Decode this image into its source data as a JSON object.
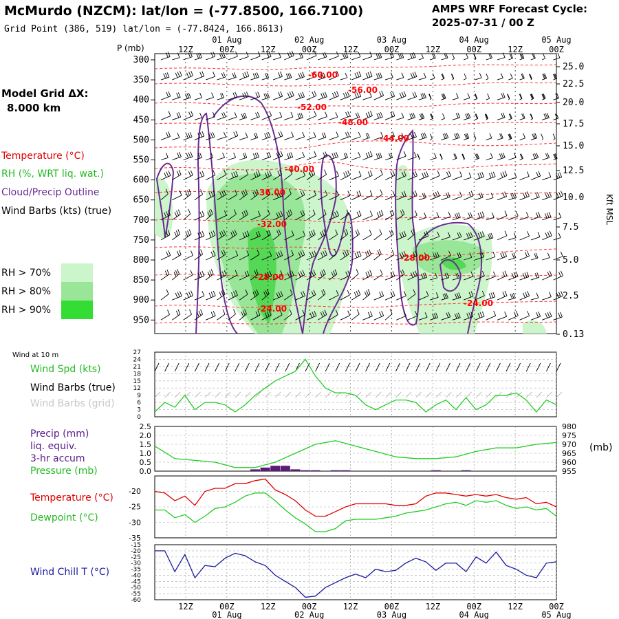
{
  "header": {
    "title": "McMurdo (NZCM):  lat/lon = (-77.8500, 166.7100)",
    "subtitle": "Grid Point (386, 519) lat/lon = (-77.8424, 166.8613)",
    "cycle_label": "AMPS WRF Forecast Cycle:",
    "cycle_value": "2025-07-31 / 00  Z"
  },
  "left_legend": {
    "grid_label": "Model Grid ΔX:",
    "grid_value": "8.000 km",
    "temperature": "Temperature (°C)",
    "rh": "RH (%, WRT liq. wat.)",
    "cloud": "Cloud/Precip Outline",
    "wind": "Wind Barbs (kts) (true)",
    "rh70": "RH > 70%",
    "rh80": "RH > 80%",
    "rh90": "RH > 90%"
  },
  "colors": {
    "temperature": "#ff0000",
    "dewpoint": "#22cc22",
    "cloud_outline": "#6a2c91",
    "rh70": "#ccf5cc",
    "rh80": "#99e699",
    "rh90": "#33dd33",
    "windchill": "#1a1aa0",
    "precip": "#5a1a7a"
  },
  "time_axis": {
    "top_days": [
      "01 Aug",
      "02 Aug",
      "03 Aug",
      "04 Aug",
      "05 Aug"
    ],
    "hour_labels": [
      "12Z",
      "00Z",
      "12Z",
      "00Z",
      "12Z",
      "00Z",
      "12Z",
      "00Z",
      "12Z",
      "00Z"
    ]
  },
  "sounding": {
    "pressure_unit": "P (mb)",
    "pressure_levels": [
      "300",
      "350",
      "400",
      "450",
      "500",
      "550",
      "600",
      "650",
      "700",
      "750",
      "800",
      "850",
      "900",
      "950"
    ],
    "height_unit": "Kft MSL",
    "height_labels": [
      "25.0",
      "22.5",
      "20.0",
      "17.5",
      "15.0",
      "12.5",
      "10.0",
      "7.5",
      "5.0",
      "2.5",
      "0.13"
    ],
    "isotherm_labels": [
      "-60.00",
      "-56.00",
      "-52.00",
      "-48.00",
      "-44.00",
      "-40.00",
      "-36.00",
      "-32.00",
      "-28.00",
      "-28.00",
      "-24.00",
      "-24.00"
    ]
  },
  "panels": {
    "wind10m_title": "Wind at 10 m",
    "wind_spd": "Wind Spd (kts)",
    "wind_barbs_true": "Wind Barbs (true)",
    "wind_barbs_grid": "Wind Barbs (grid)",
    "wind_ticks": [
      "27",
      "24",
      "21",
      "18",
      "15",
      "12",
      "9",
      "6",
      "3",
      "0"
    ],
    "precip": "Precip (mm)",
    "liq": "liq. equiv.",
    "accum": "3-hr accum",
    "pressure": "Pressure (mb)",
    "precip_ticks": [
      "2.5",
      "2.0",
      "1.5",
      "1.0",
      "0.5",
      "0.0"
    ],
    "pressure_ticks": [
      "980",
      "975",
      "970",
      "965",
      "960",
      "955"
    ],
    "pressure_unit": "(mb)",
    "temperature": "Temperature (°C)",
    "dewpoint": "Dewpoint (°C)",
    "temp_ticks": [
      "-20",
      "-25",
      "-30",
      "-35"
    ],
    "windchill": "Wind Chill T (°C)",
    "windchill_ticks": [
      "-15",
      "-20",
      "-25",
      "-30",
      "-35",
      "-40",
      "-45",
      "-50",
      "-55",
      "-60"
    ]
  },
  "chart_data": [
    {
      "type": "line",
      "title": "Wind at 10 m",
      "ylabel": "Wind Spd (kts)",
      "ylim": [
        0,
        27
      ],
      "x": [
        0,
        3,
        6,
        9,
        12,
        15,
        18,
        21,
        24,
        27,
        30,
        33,
        36,
        39,
        42,
        45,
        48,
        51,
        54,
        57,
        60,
        63,
        66,
        69,
        72,
        75,
        78,
        81,
        84,
        87,
        90,
        93,
        96,
        99,
        102,
        105,
        108,
        111,
        114,
        117,
        120
      ],
      "series": [
        {
          "name": "Wind Spd (kts)",
          "values": [
            2,
            6,
            4,
            9,
            3,
            6,
            6,
            5,
            2,
            5,
            9,
            12,
            15,
            17,
            19,
            24,
            17,
            12,
            10,
            10,
            9,
            5,
            3,
            5,
            7,
            7,
            6,
            2,
            5,
            7,
            3,
            8,
            3,
            5,
            9,
            9,
            10,
            7,
            2,
            7,
            5
          ]
        }
      ]
    },
    {
      "type": "line",
      "title": "",
      "ylabel": "Pressure (mb)",
      "ylim": [
        955,
        980
      ],
      "x": [
        0,
        6,
        12,
        18,
        24,
        30,
        36,
        42,
        48,
        54,
        60,
        66,
        72,
        78,
        84,
        90,
        96,
        102,
        108,
        114,
        120
      ],
      "series": [
        {
          "name": "Pressure (mb)",
          "values": [
            969,
            962,
            961,
            960,
            957,
            957,
            960,
            965,
            970,
            972,
            969,
            966,
            963,
            962,
            962,
            963,
            966,
            968,
            968,
            970,
            971
          ]
        }
      ]
    },
    {
      "type": "bar",
      "title": "",
      "ylabel": "Precip (mm)",
      "ylim": [
        0,
        2.5
      ],
      "x": [
        21,
        24,
        27,
        30,
        33,
        36,
        39,
        42,
        45,
        48,
        51,
        54,
        57,
        60,
        63,
        66,
        69,
        72,
        75,
        78,
        81,
        84,
        87,
        90,
        93,
        96
      ],
      "series": [
        {
          "name": "Precip (mm) liq. equiv. 3-hr accum",
          "values": [
            0,
            0,
            0,
            0.1,
            0.2,
            0.3,
            0.3,
            0.1,
            0.05,
            0.05,
            0,
            0.05,
            0.05,
            0,
            0,
            0,
            0,
            0,
            0,
            0,
            0,
            0.05,
            0,
            0,
            0.05,
            0
          ]
        }
      ]
    },
    {
      "type": "line",
      "title": "",
      "ylim": [
        -35,
        -15
      ],
      "x": [
        0,
        3,
        6,
        9,
        12,
        15,
        18,
        21,
        24,
        27,
        30,
        33,
        36,
        39,
        42,
        45,
        48,
        51,
        54,
        57,
        60,
        63,
        66,
        69,
        72,
        75,
        78,
        81,
        84,
        87,
        90,
        93,
        96,
        99,
        102,
        105,
        108,
        111,
        114,
        117,
        120
      ],
      "series": [
        {
          "name": "Temperature (°C)",
          "values": [
            -20,
            -20.5,
            -23,
            -21.5,
            -24.5,
            -20,
            -19,
            -19,
            -17.5,
            -17.5,
            -16.5,
            -16,
            -19.5,
            -21,
            -23,
            -26,
            -28,
            -28,
            -26.5,
            -25,
            -24,
            -24,
            -24,
            -24,
            -24.5,
            -24.5,
            -24,
            -21.5,
            -20.5,
            -20.5,
            -21,
            -21.5,
            -21,
            -21.5,
            -21,
            -22,
            -22.5,
            -22,
            -24,
            -23.5,
            -25
          ]
        },
        {
          "name": "Dewpoint (°C)",
          "values": [
            -26,
            -26,
            -28.5,
            -27.5,
            -30,
            -28,
            -25.5,
            -25,
            -23.5,
            -21.5,
            -20.5,
            -20.5,
            -23,
            -26,
            -28.5,
            -30.5,
            -33,
            -33,
            -32,
            -29.5,
            -29,
            -29,
            -29,
            -28.5,
            -28,
            -27,
            -26.5,
            -26,
            -25,
            -24,
            -23.5,
            -24.5,
            -23,
            -23.5,
            -23,
            -24.5,
            -25.5,
            -25,
            -26,
            -25.5,
            -28
          ]
        }
      ]
    },
    {
      "type": "line",
      "title": "",
      "ylabel": "Wind Chill T (°C)",
      "ylim": [
        -60,
        -15
      ],
      "x": [
        0,
        3,
        6,
        9,
        12,
        15,
        18,
        21,
        24,
        27,
        30,
        33,
        36,
        39,
        42,
        45,
        48,
        51,
        54,
        57,
        60,
        63,
        66,
        69,
        72,
        75,
        78,
        81,
        84,
        87,
        90,
        93,
        96,
        99,
        102,
        105,
        108,
        111,
        114,
        117,
        120
      ],
      "series": [
        {
          "name": "Wind Chill T (°C)",
          "values": [
            -20,
            -20,
            -37,
            -23,
            -42,
            -32,
            -33,
            -26,
            -22,
            -24,
            -29,
            -32,
            -40,
            -45,
            -50,
            -58,
            -57,
            -50,
            -46,
            -42,
            -39,
            -42,
            -35,
            -37,
            -36,
            -30,
            -26,
            -29,
            -36,
            -30,
            -30,
            -37,
            -25,
            -30,
            -21,
            -32,
            -35,
            -40,
            -42,
            -30,
            -29
          ]
        }
      ]
    }
  ]
}
